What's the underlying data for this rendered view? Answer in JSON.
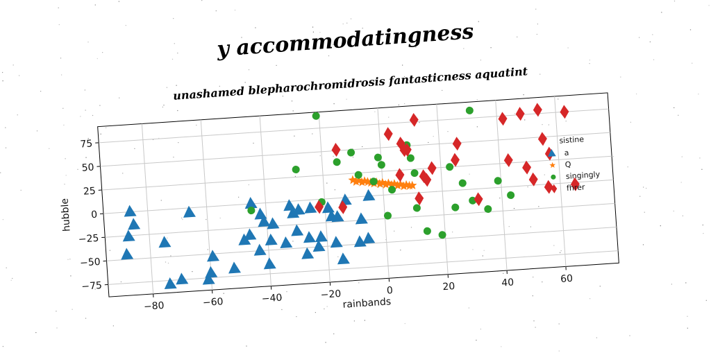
{
  "chart_data": {
    "type": "scatter",
    "title": "y accommodatingness",
    "subtitle": "unashamed blepharochromidrosis fantasticness aquatint",
    "xlabel": "rainbands",
    "ylabel": "hubble",
    "xlim": [
      -95,
      78
    ],
    "ylim": [
      -88,
      92
    ],
    "xticks": [
      -80,
      -60,
      -40,
      -20,
      0,
      20,
      40,
      60
    ],
    "yticks": [
      -75,
      -50,
      -25,
      0,
      25,
      50,
      75
    ],
    "grid": true,
    "legend": {
      "title": "sistine",
      "position": "right"
    },
    "series": [
      {
        "name": "a",
        "marker": "triangle",
        "color": "#1f77b4",
        "points": [
          [
            -86,
            0
          ],
          [
            -85,
            -14
          ],
          [
            -87,
            -26
          ],
          [
            -88,
            -45
          ],
          [
            -75,
            -35
          ],
          [
            -74,
            -79
          ],
          [
            -70,
            -75
          ],
          [
            -66,
            -5
          ],
          [
            -61,
            -77
          ],
          [
            -60,
            -70
          ],
          [
            -59,
            -53
          ],
          [
            -52,
            -67
          ],
          [
            -48,
            -38
          ],
          [
            -46,
            -33
          ],
          [
            -45,
            0
          ],
          [
            -43,
            -50
          ],
          [
            -42,
            -12
          ],
          [
            -41,
            -20
          ],
          [
            -40,
            -65
          ],
          [
            -39,
            -40
          ],
          [
            -38,
            -23
          ],
          [
            -34,
            -44
          ],
          [
            -32,
            -5
          ],
          [
            -31,
            -13
          ],
          [
            -30,
            -32
          ],
          [
            -29,
            -10
          ],
          [
            -27,
            -57
          ],
          [
            -26,
            -40
          ],
          [
            -25,
            -9
          ],
          [
            -23,
            -50
          ],
          [
            -22,
            -40
          ],
          [
            -19,
            -10
          ],
          [
            -18,
            -19
          ],
          [
            -17,
            -47
          ],
          [
            -16,
            -20
          ],
          [
            -15,
            -65
          ],
          [
            -13,
            -3
          ],
          [
            -9,
            -48
          ],
          [
            -8,
            -24
          ],
          [
            -6,
            -45
          ],
          [
            -5,
            0
          ]
        ]
      },
      {
        "name": "Q",
        "marker": "star",
        "color": "#ff7f0e",
        "points": [
          [
            -10,
            18
          ],
          [
            -9,
            16
          ],
          [
            -8,
            17
          ],
          [
            -7,
            15
          ],
          [
            -6,
            16
          ],
          [
            -5,
            15
          ],
          [
            -4,
            14
          ],
          [
            -3,
            13
          ],
          [
            -2,
            14
          ],
          [
            -1,
            12
          ],
          [
            0,
            13
          ],
          [
            1,
            11
          ],
          [
            2,
            12
          ],
          [
            3,
            10
          ],
          [
            4,
            11
          ],
          [
            5,
            9
          ],
          [
            6,
            10
          ],
          [
            7,
            8
          ],
          [
            8,
            9
          ],
          [
            9,
            8
          ],
          [
            10,
            8
          ]
        ]
      },
      {
        "name": "singingly",
        "marker": "circle",
        "color": "#2ca02c",
        "points": [
          [
            -21,
            88
          ],
          [
            -45,
            -7
          ],
          [
            -29,
            33
          ],
          [
            -21,
            -3
          ],
          [
            -15,
            38
          ],
          [
            -10,
            47
          ],
          [
            -8,
            23
          ],
          [
            -3,
            15
          ],
          [
            -1,
            40
          ],
          [
            0,
            32
          ],
          [
            1,
            -22
          ],
          [
            3,
            5
          ],
          [
            9,
            51
          ],
          [
            10,
            37
          ],
          [
            11,
            21
          ],
          [
            11,
            -16
          ],
          [
            14,
            -41
          ],
          [
            19,
            -46
          ],
          [
            23,
            25
          ],
          [
            24,
            -18
          ],
          [
            27,
            7
          ],
          [
            30,
            -12
          ],
          [
            31,
            83
          ],
          [
            35,
            -22
          ],
          [
            39,
            7
          ],
          [
            43,
            -9
          ]
        ]
      },
      {
        "name": "fhrer",
        "marker": "diamond",
        "color": "#d62728",
        "points": [
          [
            -22,
            -8
          ],
          [
            -15,
            51
          ],
          [
            -14,
            -10
          ],
          [
            3,
            64
          ],
          [
            6,
            20
          ],
          [
            7,
            53
          ],
          [
            8,
            46
          ],
          [
            9,
            46
          ],
          [
            12,
            77
          ],
          [
            12,
            -6
          ],
          [
            14,
            17
          ],
          [
            15,
            13
          ],
          [
            17,
            25
          ],
          [
            25,
            32
          ],
          [
            26,
            49
          ],
          [
            32,
            -11
          ],
          [
            42,
            72
          ],
          [
            43,
            28
          ],
          [
            48,
            76
          ],
          [
            49,
            19
          ],
          [
            51,
            6
          ],
          [
            54,
            79
          ],
          [
            55,
            48
          ],
          [
            56,
            -3
          ],
          [
            57,
            32
          ],
          [
            63,
            75
          ],
          [
            65,
            -2
          ]
        ]
      }
    ]
  }
}
